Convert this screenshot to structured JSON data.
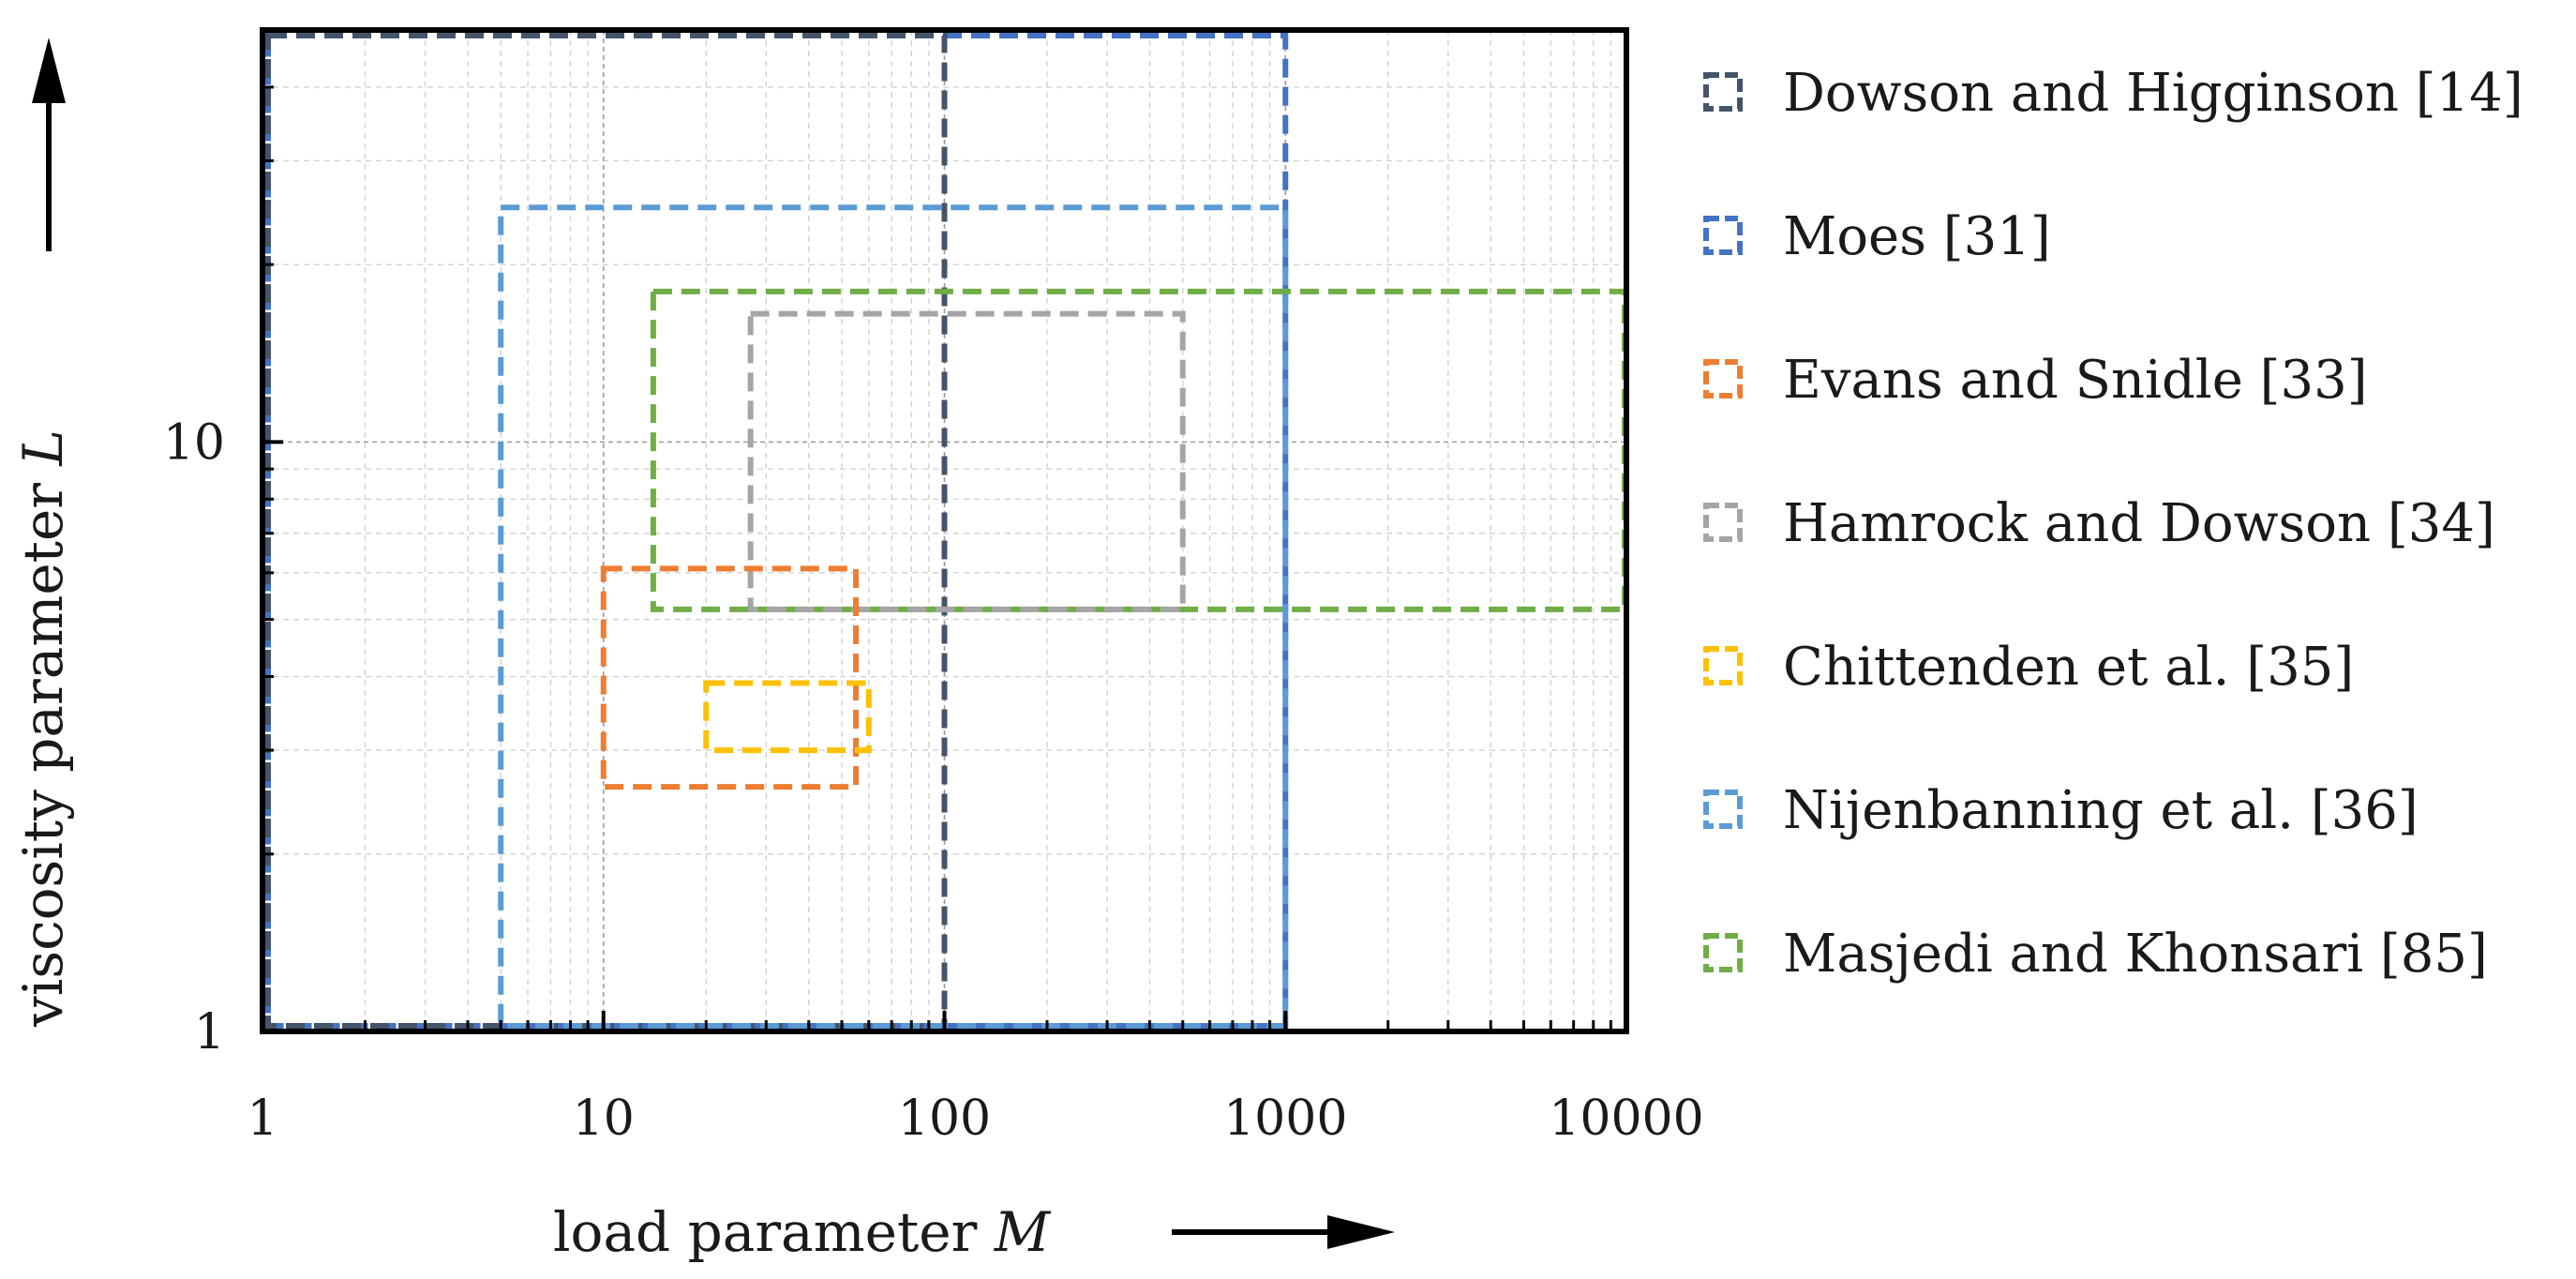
{
  "chart_data": {
    "type": "region",
    "title": "",
    "xlabel": {
      "text": "load parameter ",
      "var": "M"
    },
    "ylabel": {
      "text": "viscosity parameter ",
      "var": "L"
    },
    "xscale": "log",
    "yscale": "log",
    "xlim": [
      1,
      10000
    ],
    "ylim": [
      1,
      50
    ],
    "xticks": [
      {
        "value": 1,
        "label": "1"
      },
      {
        "value": 10,
        "label": "10"
      },
      {
        "value": 100,
        "label": "100"
      },
      {
        "value": 1000,
        "label": "1000"
      },
      {
        "value": 10000,
        "label": "10000"
      }
    ],
    "yticks": [
      {
        "value": 1,
        "label": "1"
      },
      {
        "value": 10,
        "label": "10"
      }
    ],
    "grid": true,
    "legend_position": "right",
    "series": [
      {
        "name": "Dowson and Higginson [14]",
        "color": "#44546a",
        "x": [
          1,
          100
        ],
        "y": [
          1,
          50
        ]
      },
      {
        "name": "Moes [31]",
        "color": "#4472c4",
        "x": [
          1,
          1000
        ],
        "y": [
          1,
          50
        ]
      },
      {
        "name": "Evans and Snidle [33]",
        "color": "#ed7d31",
        "x": [
          10,
          55
        ],
        "y": [
          2.6,
          6.1
        ]
      },
      {
        "name": "Hamrock and Dowson [34]",
        "color": "#a5a5a5",
        "x": [
          27,
          500
        ],
        "y": [
          5.2,
          16.5
        ]
      },
      {
        "name": "Chittenden et al. [35]",
        "color": "#ffc000",
        "x": [
          20,
          60
        ],
        "y": [
          3.0,
          3.9
        ]
      },
      {
        "name": "Nijenbanning et al. [36]",
        "color": "#5b9bd5",
        "x": [
          5,
          1000
        ],
        "y": [
          1,
          25
        ]
      },
      {
        "name": "Masjedi and Khonsari [85]",
        "color": "#70ad47",
        "x": [
          14,
          10000
        ],
        "y": [
          5.2,
          18
        ]
      }
    ]
  }
}
